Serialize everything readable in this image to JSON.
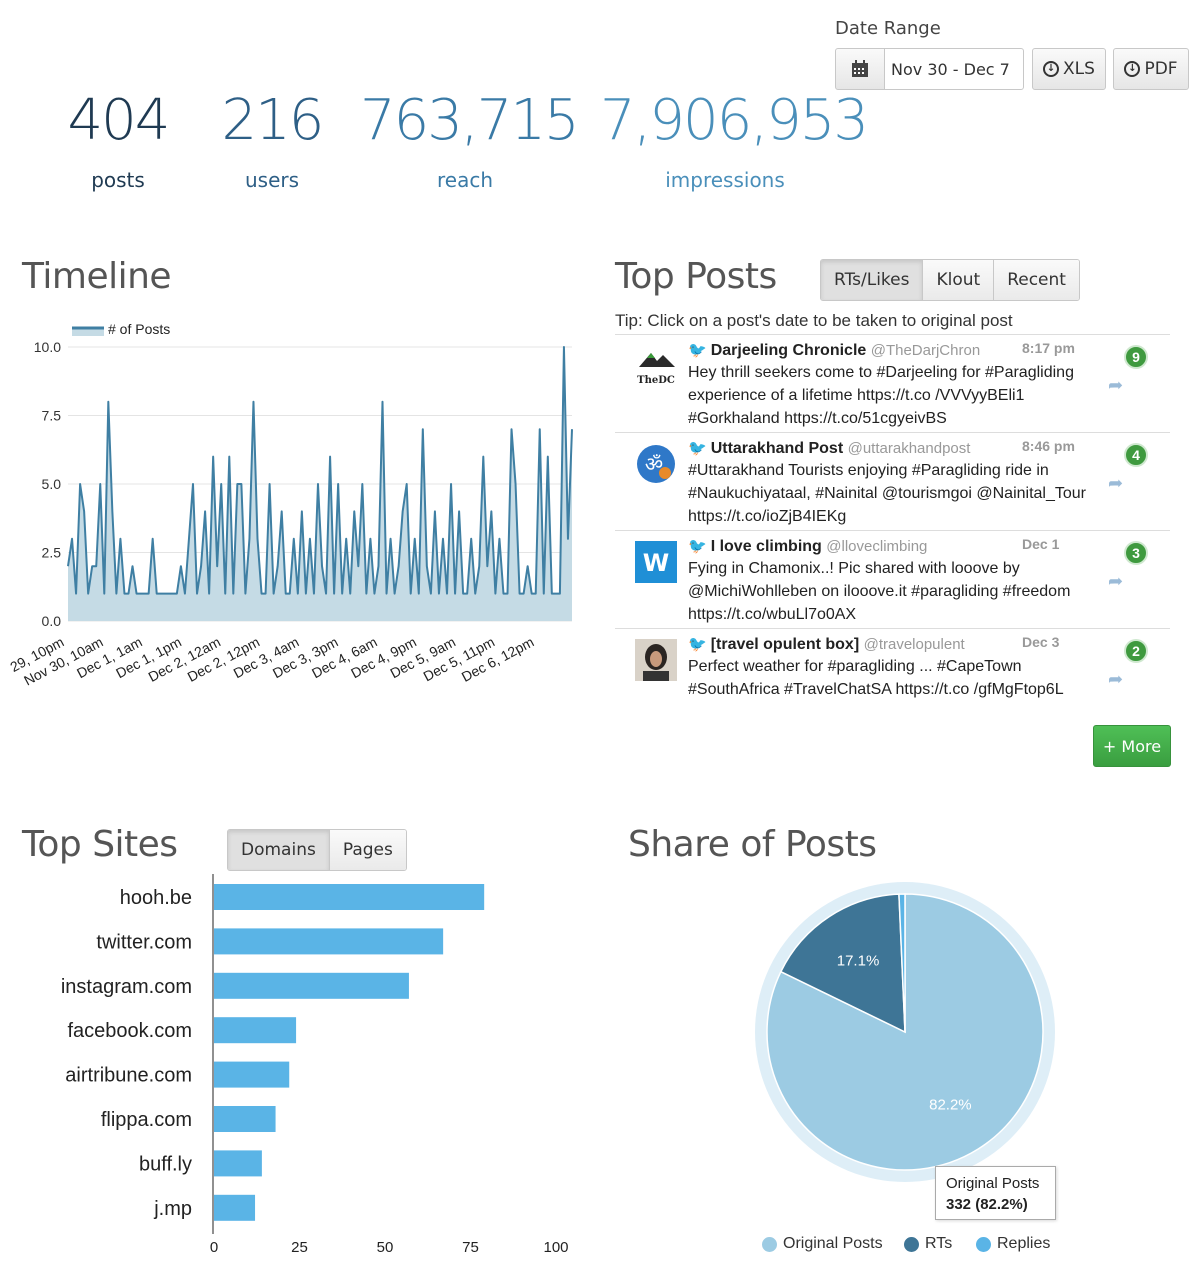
{
  "date_range": {
    "label": "Date Range",
    "value": "Nov 30 - Dec 7",
    "calendar_icon": "calendar-icon",
    "xls_label": "XLS",
    "pdf_label": "PDF"
  },
  "stats": [
    {
      "value": "404",
      "label": "posts",
      "color": "#1f3a52"
    },
    {
      "value": "216",
      "label": "users",
      "color": "#2e5f86"
    },
    {
      "value": "763,715",
      "label": "reach",
      "color": "#3a7aa6"
    },
    {
      "value": "7,906,953",
      "label": "impressions",
      "color": "#4a8fba"
    }
  ],
  "timeline": {
    "title": "Timeline",
    "chart_data": {
      "type": "area",
      "legend": "# of Posts",
      "ylim": [
        0,
        10
      ],
      "yticks": [
        "10.0",
        "7.5",
        "5.0",
        "2.5",
        "0.0"
      ],
      "xtick_labels": [
        "29, 10pm",
        "Nov 30, 10am",
        "Dec 1, 1am",
        "Dec 1, 1pm",
        "Dec 2, 12am",
        "Dec 2, 12pm",
        "Dec 3, 4am",
        "Dec 3, 3pm",
        "Dec 4, 6am",
        "Dec 4, 9pm",
        "Dec 5, 9am",
        "Dec 5, 11pm",
        "Dec 6, 12pm"
      ],
      "values": [
        2,
        3,
        1,
        5,
        4,
        1,
        2,
        2,
        5,
        1,
        8,
        4,
        1,
        3,
        1,
        1,
        2,
        1,
        1,
        1,
        1,
        3,
        1,
        1,
        1,
        1,
        1,
        1,
        2,
        1,
        3,
        5,
        1,
        2,
        4,
        1,
        6,
        2,
        5,
        1,
        6,
        1,
        5,
        5,
        1,
        3,
        8,
        3,
        1,
        1,
        5,
        1,
        2,
        4,
        1,
        1,
        3,
        1,
        4,
        1,
        3,
        1,
        5,
        2,
        1,
        6,
        1,
        5,
        1,
        3,
        1,
        4,
        2,
        5,
        1,
        3,
        1,
        2,
        8,
        1,
        3,
        1,
        2,
        4,
        5,
        1,
        3,
        1,
        7,
        2,
        1,
        4,
        1,
        3,
        1,
        5,
        1,
        4,
        1,
        1,
        3,
        1,
        2,
        6,
        2,
        4,
        1,
        3,
        1,
        1,
        7,
        5,
        1,
        1,
        2,
        1,
        1,
        7,
        1,
        6,
        1,
        1,
        1,
        10,
        3,
        7
      ]
    }
  },
  "top_posts": {
    "title": "Top Posts",
    "tabs": [
      "RTs/Likes",
      "Klout",
      "Recent"
    ],
    "tip": "Tip: Click on a post's date to be taken to original post",
    "more_label": "+ More",
    "items": [
      {
        "name": "Darjeeling Chronicle",
        "handle": "@TheDarjChron",
        "time": "8:17 pm",
        "count": "9",
        "avatar_text": "TheDC",
        "text": "Hey thrill seekers come to #Darjeeling for #Paragliding experience of a lifetime https://t.co /VVVyyBEli1 #Gorkhaland https://t.co/51cgyeivBS"
      },
      {
        "name": "Uttarakhand Post",
        "handle": "@uttarakhandpost",
        "time": "8:46 pm",
        "count": "4",
        "avatar_text": "ॐ",
        "text": "#Uttarakhand Tourists enjoying #Paragliding ride in #Naukuchiyataal, #Nainital @tourismgoi @Nainital_Tour https://t.co/ioZjB4IEKg"
      },
      {
        "name": "I love climbing",
        "handle": "@lloveclimbing",
        "time": "Dec 1",
        "count": "3",
        "avatar_text": "W",
        "text": "Fying in Chamonix..! Pic shared with looove by @MichiWohlleben on ilooove.it #paragliding #freedom https://t.co/wbuLl7o0AX"
      },
      {
        "name": "[travel opulent box]",
        "handle": "@travelopulent",
        "time": "Dec 3",
        "count": "2",
        "avatar_text": "",
        "text": "Perfect weather for #paragliding ... #CapeTown #SouthAfrica #TravelChatSA https://t.co /gfMgFtop6L"
      }
    ]
  },
  "top_sites": {
    "title": "Top Sites",
    "tabs": [
      "Domains",
      "Pages"
    ],
    "chart_data": {
      "type": "bar",
      "orientation": "horizontal",
      "categories": [
        "hooh.be",
        "twitter.com",
        "instagram.com",
        "facebook.com",
        "airtribune.com",
        "flippa.com",
        "buff.ly",
        "j.mp"
      ],
      "values": [
        79,
        67,
        57,
        24,
        22,
        18,
        14,
        12
      ],
      "xlim": [
        0,
        100
      ],
      "xticks": [
        "0",
        "25",
        "50",
        "75",
        "100"
      ],
      "color": "#5ab4e6"
    }
  },
  "share_of_posts": {
    "title": "Share of Posts",
    "chart_data": {
      "type": "pie",
      "series": [
        {
          "name": "Original Posts",
          "value": 82.2,
          "color": "#9ccbe3",
          "label": "82.2%"
        },
        {
          "name": "RTs",
          "value": 17.1,
          "color": "#3e7596",
          "label": "17.1%"
        },
        {
          "name": "Replies",
          "value": 0.7,
          "color": "#5ab4e6",
          "label": ""
        }
      ],
      "tooltip": {
        "title": "Original Posts",
        "value": "332 (82.2%)"
      }
    }
  }
}
